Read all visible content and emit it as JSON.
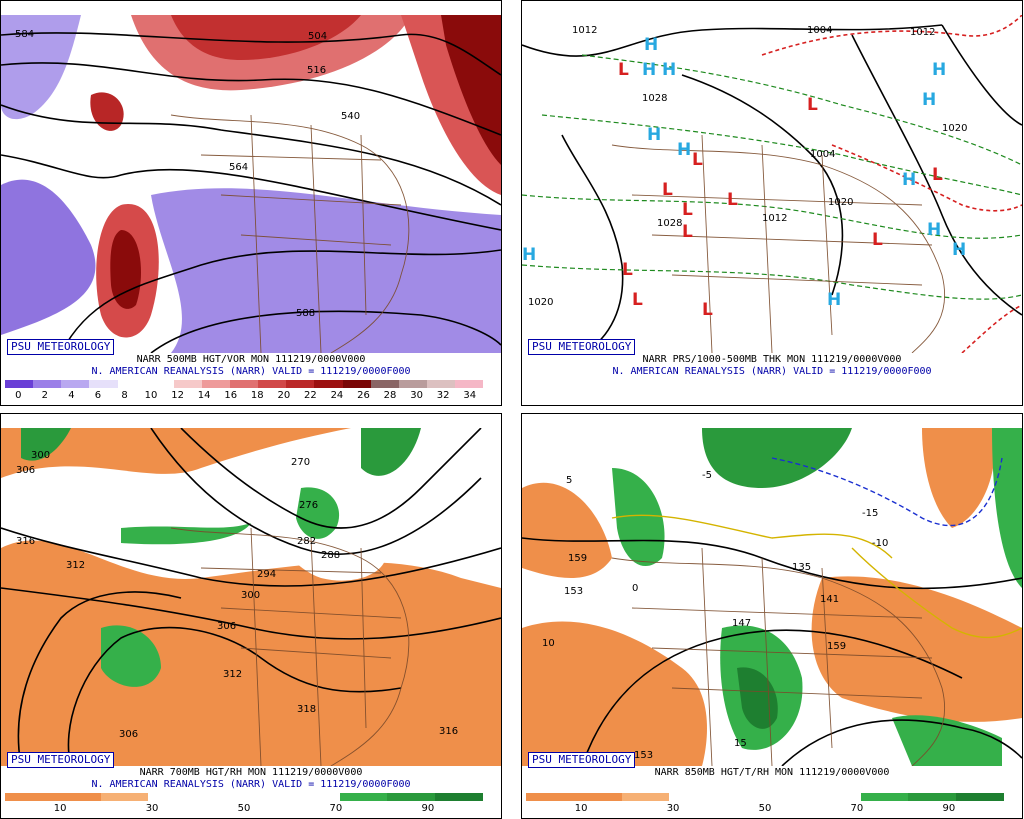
{
  "badge": "PSU METEOROLOGY",
  "panels": [
    {
      "line1": "NARR 500MB HGT/VOR MON 111219/0000V000",
      "line2": "N. AMERICAN REANALYSIS (NARR) VALID = 111219/0000F000",
      "colorbar": {
        "colors": [
          "#6a3fd6",
          "#9b7fe8",
          "#b9a8f0",
          "#e6e0fa",
          "#ffffff",
          "#ffffff",
          "#f6c9c9",
          "#ee9a9a",
          "#e07070",
          "#d14848",
          "#bb2828",
          "#9c1010",
          "#7a0606",
          "#8a6666",
          "#b99c9c",
          "#dcc0c0",
          "#f5b7c6"
        ],
        "ticks": [
          "0",
          "2",
          "4",
          "6",
          "8",
          "10",
          "12",
          "14",
          "16",
          "18",
          "20",
          "22",
          "24",
          "26",
          "28",
          "30",
          "32",
          "34"
        ]
      },
      "labels": [
        "584",
        "516",
        "504",
        "540",
        "564",
        "588"
      ]
    },
    {
      "line1": "NARR PRS/1000-500MB THK MON 111219/0000V000",
      "line2": "N. AMERICAN REANALYSIS (NARR) VALID = 111219/0000F000",
      "labels": [
        "1012",
        "1004",
        "1012",
        "1028",
        "1004",
        "1020",
        "1012",
        "1028",
        "1020",
        "1020"
      ]
    },
    {
      "line1": "NARR 700MB HGT/RH MON 111219/0000V000",
      "line2": "N. AMERICAN REANALYSIS (NARR) VALID = 111219/0000F000",
      "colorbar": {
        "colors": [
          "#ef8f4a",
          "#ef8f4a",
          "#f6b074",
          "#ffffff",
          "#ffffff",
          "#ffffff",
          "#ffffff",
          "#35b04a",
          "#2a9a3c",
          "#1e7f30"
        ],
        "ticks": [
          "10",
          "30",
          "50",
          "70",
          "90"
        ]
      },
      "labels": [
        "300",
        "306",
        "316",
        "312",
        "270",
        "276",
        "282",
        "288",
        "294",
        "300",
        "306",
        "312",
        "318",
        "306",
        "316"
      ]
    },
    {
      "line1": "NARR 850MB HGT/T/RH MON 111219/0000V000",
      "line2": "",
      "colorbar": {
        "colors": [
          "#ef8f4a",
          "#ef8f4a",
          "#f6b074",
          "#ffffff",
          "#ffffff",
          "#ffffff",
          "#ffffff",
          "#35b04a",
          "#2a9a3c",
          "#1e7f30"
        ],
        "ticks": [
          "10",
          "30",
          "50",
          "70",
          "90"
        ]
      },
      "labels": [
        "159",
        "153",
        "147",
        "141",
        "135",
        "159",
        "153",
        "5",
        "-5",
        "-10",
        "-15",
        "10",
        "15",
        "0"
      ]
    }
  ]
}
